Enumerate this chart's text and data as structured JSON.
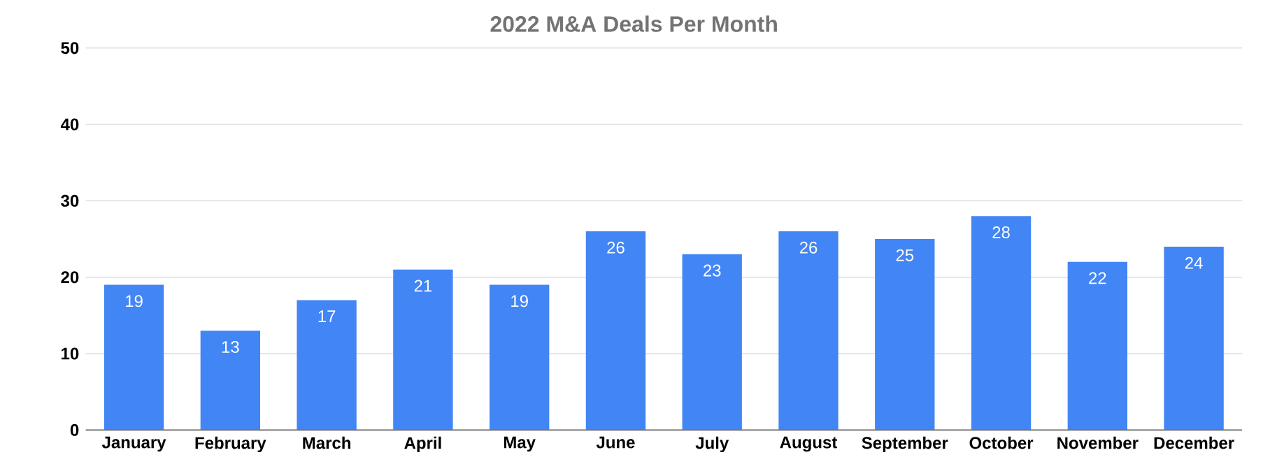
{
  "chart_data": {
    "type": "bar",
    "title": "2022 M&A Deals Per Month",
    "categories": [
      "January",
      "February",
      "March",
      "April",
      "May",
      "June",
      "July",
      "August",
      "September",
      "October",
      "November",
      "December"
    ],
    "values": [
      19,
      13,
      17,
      21,
      19,
      26,
      23,
      26,
      25,
      28,
      22,
      24
    ],
    "color": "#4285f4",
    "ylim": [
      0,
      50
    ],
    "yticks": [
      0,
      10,
      20,
      30,
      40,
      50
    ],
    "grid": "y",
    "data_labels": true
  }
}
